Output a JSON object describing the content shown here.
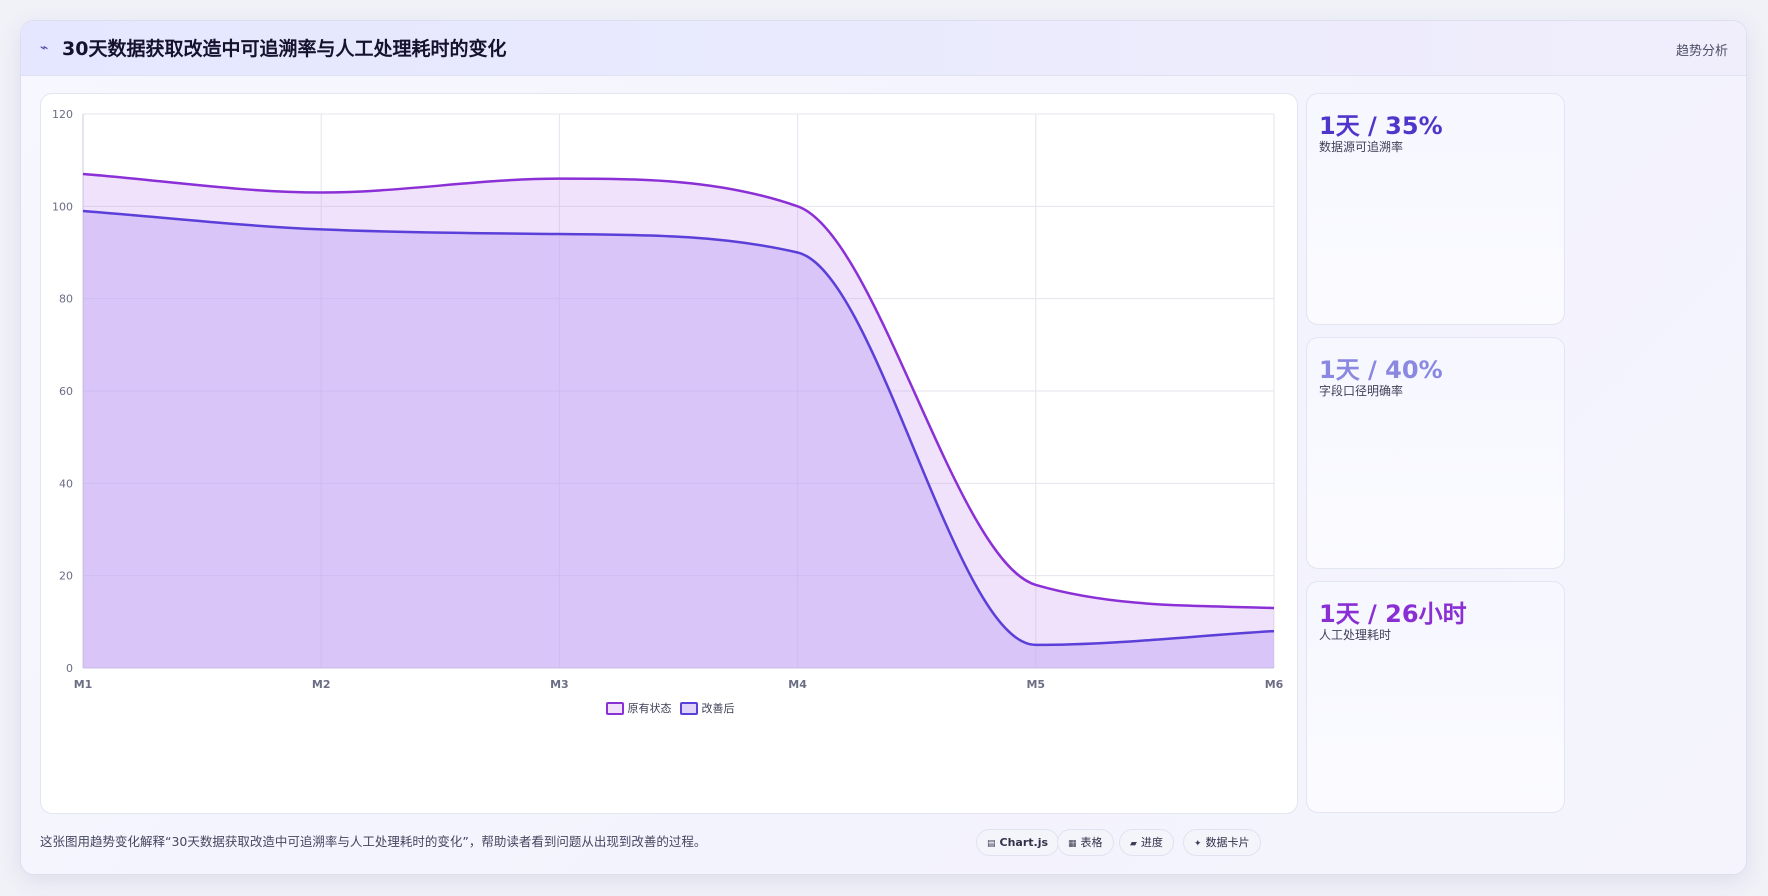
{
  "header": {
    "title_icon": "⌁",
    "title": "30天数据获取改造中可追溯率与人工处理耗时的变化",
    "tag": "趋势分析"
  },
  "chart_data": {
    "type": "area",
    "title": "",
    "xlabel": "",
    "ylabel": "",
    "categories": [
      "M1",
      "M2",
      "M3",
      "M4",
      "M5",
      "M6"
    ],
    "ylim": [
      0,
      120
    ],
    "yticks": [
      0,
      20,
      40,
      60,
      80,
      100,
      120
    ],
    "grid": true,
    "legend_position": "bottom",
    "series": [
      {
        "name": "原有状态",
        "values": [
          107,
          103,
          106,
          100,
          18,
          13
        ],
        "color": "#8b2fd6",
        "fill": "rgba(201, 150, 236, 0.28)"
      },
      {
        "name": "改善后",
        "values": [
          99,
          95,
          94,
          90,
          5,
          8
        ],
        "color": "#5b3fd9",
        "fill": "rgba(196, 170, 243, 0.52)"
      }
    ]
  },
  "stats": [
    {
      "value": "1天 / 35%",
      "label": "数据源可追溯率",
      "color": "#4f35c9"
    },
    {
      "value": "1天 / 40%",
      "label": "字段口径明确率",
      "color": "#8a88e0"
    },
    {
      "value": "1天 / 26小时",
      "label": "人工处理耗时",
      "color": "#8a2fd4"
    }
  ],
  "footer": {
    "note": "这张图用趋势变化解释“30天数据获取改造中可追溯率与人工处理耗时的变化”，帮助读者看到问题从出现到改善的过程。",
    "chips": [
      {
        "icon": "▤",
        "label": "Chart.js",
        "icon_name": "chart-icon"
      },
      {
        "icon": "▦",
        "label": "表格",
        "icon_name": "table-icon"
      },
      {
        "icon": "▰",
        "label": "进度",
        "icon_name": "progress-icon"
      },
      {
        "icon": "✦",
        "label": "数据卡片",
        "icon_name": "card-icon"
      }
    ]
  }
}
